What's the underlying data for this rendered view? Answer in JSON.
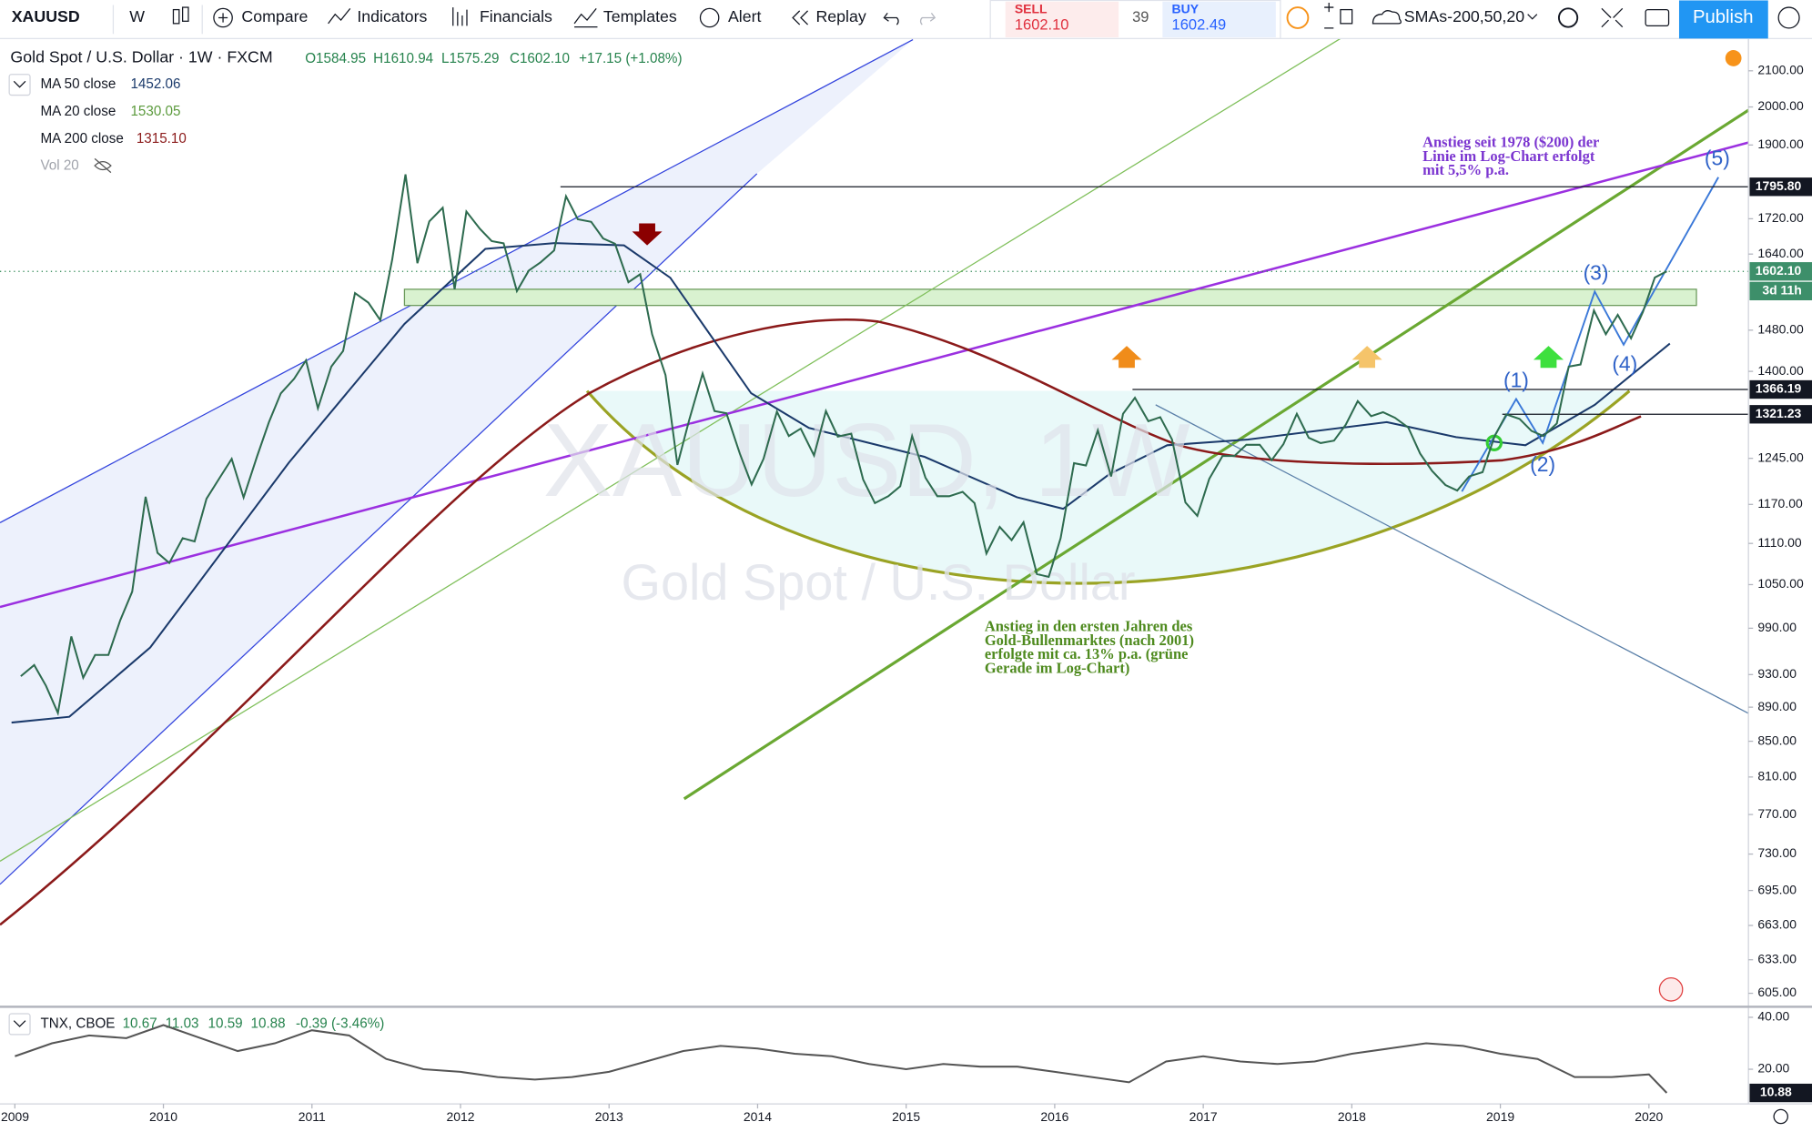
{
  "toolbar": {
    "symbol": "XAUUSD",
    "interval": "W",
    "buttons": [
      "Compare",
      "Indicators",
      "Financials",
      "Templates",
      "Alert",
      "Replay"
    ],
    "sell": {
      "label": "SELL",
      "price": "1602.10"
    },
    "spread": "39",
    "buy": {
      "label": "BUY",
      "price": "1602.49"
    },
    "indicator_template": "SMAs-200,50,20",
    "publish": "Publish"
  },
  "legend": {
    "title": "Gold Spot / U.S. Dollar · 1W · FXCM",
    "ohlc": [
      "O1584.95",
      "H1610.94",
      "L1575.29",
      "C1602.10"
    ],
    "change": "+17.15 (+1.08%)",
    "studies": [
      {
        "name": "MA 50 close",
        "value": "1452.06",
        "color": "#1b3a6b"
      },
      {
        "name": "MA 20 close",
        "value": "1530.05",
        "color": "#5b9a3c"
      },
      {
        "name": "MA 200 close",
        "value": "1315.10",
        "color": "#8b1a1a"
      },
      {
        "name": "Vol 20"
      }
    ]
  },
  "watermark": {
    "symbol": "XAUUSD, 1W",
    "description": "Gold Spot / U.S. Dollar"
  },
  "annotations": {
    "purple": [
      "Anstieg seit 1978 ($200) der",
      "Linie im Log-Chart erfolgt",
      "mit 5,5% p.a."
    ],
    "green": [
      "Anstieg in den ersten Jahren des",
      "Gold-Bullenmarktes (nach 2001)",
      "erfolgte mit ca. 13% p.a. (grüne",
      "Gerade im Log-Chart)"
    ],
    "waves": [
      "(1)",
      "(2)",
      "(3)",
      "(4)",
      "(5)"
    ]
  },
  "time_axis": {
    "xlim": [
      2008.9,
      2020.67
    ],
    "xticks": [
      2009,
      2010,
      2011,
      2012,
      2013,
      2014,
      2015,
      2016,
      2017,
      2018,
      2019,
      2020
    ]
  },
  "price_chart": {
    "type": "line",
    "scale": "log",
    "color": "#2e6b4f",
    "ylim": [
      595,
      2190
    ],
    "yticks": [
      {
        "value": 2100,
        "label": "2100.00"
      },
      {
        "value": 2000,
        "label": "2000.00"
      },
      {
        "value": 1900,
        "label": "1900.00"
      },
      {
        "value": 1720,
        "label": "1720.00"
      },
      {
        "value": 1640,
        "label": "1640.00"
      },
      {
        "value": 1480,
        "label": "1480.00"
      },
      {
        "value": 1400,
        "label": "1400.00"
      },
      {
        "value": 1245,
        "label": "1245.00"
      },
      {
        "value": 1170,
        "label": "1170.00"
      },
      {
        "value": 1110,
        "label": "1110.00"
      },
      {
        "value": 1050,
        "label": "1050.00"
      },
      {
        "value": 990,
        "label": "990.00"
      },
      {
        "value": 930,
        "label": "930.00"
      },
      {
        "value": 890,
        "label": "890.00"
      },
      {
        "value": 850,
        "label": "850.00"
      },
      {
        "value": 810,
        "label": "810.00"
      },
      {
        "value": 770,
        "label": "770.00"
      },
      {
        "value": 730,
        "label": "730.00"
      },
      {
        "value": 695,
        "label": "695.00"
      },
      {
        "value": 663,
        "label": "663.00"
      },
      {
        "value": 633,
        "label": "633.00"
      },
      {
        "value": 605,
        "label": "605.00"
      }
    ],
    "price_lines": [
      {
        "value": 1795.8,
        "label": "1795.80"
      },
      {
        "value": 1366.19,
        "label": "1366.19"
      },
      {
        "value": 1321.23,
        "label": "1321.23"
      }
    ],
    "last_price": {
      "value": 1602.1,
      "label": "1602.10"
    },
    "countdown": "3d 11h",
    "x": [
      2009.04,
      2009.13,
      2009.21,
      2009.29,
      2009.38,
      2009.46,
      2009.54,
      2009.63,
      2009.71,
      2009.79,
      2009.88,
      2009.96,
      2010.04,
      2010.13,
      2010.21,
      2010.29,
      2010.38,
      2010.46,
      2010.54,
      2010.63,
      2010.71,
      2010.79,
      2010.88,
      2010.96,
      2011.04,
      2011.13,
      2011.21,
      2011.29,
      2011.38,
      2011.46,
      2011.54,
      2011.63,
      2011.71,
      2011.79,
      2011.88,
      2011.96,
      2012.04,
      2012.13,
      2012.21,
      2012.29,
      2012.38,
      2012.46,
      2012.54,
      2012.63,
      2012.71,
      2012.79,
      2012.88,
      2012.96,
      2013.04,
      2013.13,
      2013.21,
      2013.29,
      2013.38,
      2013.46,
      2013.54,
      2013.63,
      2013.71,
      2013.79,
      2013.88,
      2013.96,
      2014.04,
      2014.13,
      2014.21,
      2014.29,
      2014.38,
      2014.46,
      2014.54,
      2014.63,
      2014.71,
      2014.79,
      2014.88,
      2014.96,
      2015.04,
      2015.13,
      2015.21,
      2015.29,
      2015.38,
      2015.46,
      2015.54,
      2015.63,
      2015.71,
      2015.79,
      2015.88,
      2015.96,
      2016.04,
      2016.13,
      2016.21,
      2016.29,
      2016.38,
      2016.46,
      2016.54,
      2016.63,
      2016.71,
      2016.79,
      2016.88,
      2016.96,
      2017.04,
      2017.13,
      2017.21,
      2017.29,
      2017.38,
      2017.46,
      2017.54,
      2017.63,
      2017.71,
      2017.79,
      2017.88,
      2017.96,
      2018.04,
      2018.13,
      2018.21,
      2018.29,
      2018.38,
      2018.46,
      2018.54,
      2018.63,
      2018.71,
      2018.79,
      2018.88,
      2018.96,
      2019.04,
      2019.13,
      2019.21,
      2019.29,
      2019.38,
      2019.46,
      2019.54,
      2019.63,
      2019.71,
      2019.79,
      2019.88,
      2019.96,
      2020.04,
      2020.12
    ],
    "values": [
      928,
      942,
      916,
      883,
      979,
      926,
      955,
      955,
      1001,
      1040,
      1182,
      1096,
      1081,
      1118,
      1113,
      1179,
      1213,
      1244,
      1181,
      1248,
      1307,
      1359,
      1386,
      1421,
      1332,
      1409,
      1439,
      1556,
      1536,
      1500,
      1628,
      1826,
      1620,
      1714,
      1746,
      1564,
      1737,
      1697,
      1669,
      1664,
      1560,
      1604,
      1622,
      1648,
      1773,
      1719,
      1713,
      1675,
      1663,
      1579,
      1596,
      1472,
      1393,
      1234,
      1312,
      1396,
      1327,
      1323,
      1253,
      1202,
      1244,
      1326,
      1283,
      1296,
      1250,
      1327,
      1282,
      1287,
      1210,
      1172,
      1183,
      1199,
      1283,
      1213,
      1183,
      1183,
      1190,
      1172,
      1095,
      1135,
      1115,
      1142,
      1065,
      1061,
      1118,
      1237,
      1233,
      1293,
      1215,
      1322,
      1351,
      1309,
      1316,
      1277,
      1173,
      1152,
      1211,
      1249,
      1249,
      1268,
      1268,
      1242,
      1269,
      1322,
      1280,
      1271,
      1275,
      1303,
      1345,
      1318,
      1325,
      1315,
      1298,
      1253,
      1224,
      1201,
      1192,
      1215,
      1222,
      1282,
      1321,
      1313,
      1292,
      1283,
      1305,
      1409,
      1413,
      1520,
      1472,
      1511,
      1464,
      1517,
      1589,
      1602.1
    ]
  },
  "tnx_panel": {
    "type": "line",
    "color": "#555555",
    "legend": {
      "name": "TNX, CBOE",
      "ohlc": [
        "10.67",
        "11.03",
        "10.59",
        "10.88"
      ],
      "change": "-0.39 (-3.46%)"
    },
    "ylim": [
      6.67,
      43.6
    ],
    "yticks": [
      {
        "value": 40,
        "label": "40.00"
      },
      {
        "value": 20,
        "label": "20.00"
      }
    ],
    "last": {
      "value": 10.88,
      "label": "10.88"
    },
    "x": [
      2009,
      2009.25,
      2009.5,
      2009.75,
      2010,
      2010.25,
      2010.5,
      2010.75,
      2011,
      2011.25,
      2011.5,
      2011.75,
      2012,
      2012.25,
      2012.5,
      2012.75,
      2013,
      2013.25,
      2013.5,
      2013.75,
      2014,
      2014.25,
      2014.5,
      2014.75,
      2015,
      2015.25,
      2015.5,
      2015.75,
      2016,
      2016.25,
      2016.5,
      2016.75,
      2017,
      2017.25,
      2017.5,
      2017.75,
      2018,
      2018.25,
      2018.5,
      2018.75,
      2019,
      2019.25,
      2019.5,
      2019.75,
      2020,
      2020.12
    ],
    "values": [
      25,
      30,
      33,
      32,
      37,
      32,
      27,
      30,
      35,
      33,
      24,
      20,
      19,
      17,
      16,
      17,
      19,
      23,
      27,
      29,
      28,
      26,
      25,
      22,
      20,
      22,
      21,
      21,
      19,
      17,
      15,
      23,
      25,
      23,
      22,
      23,
      26,
      28,
      30,
      29,
      26,
      24,
      17,
      17,
      18,
      10.88
    ]
  }
}
